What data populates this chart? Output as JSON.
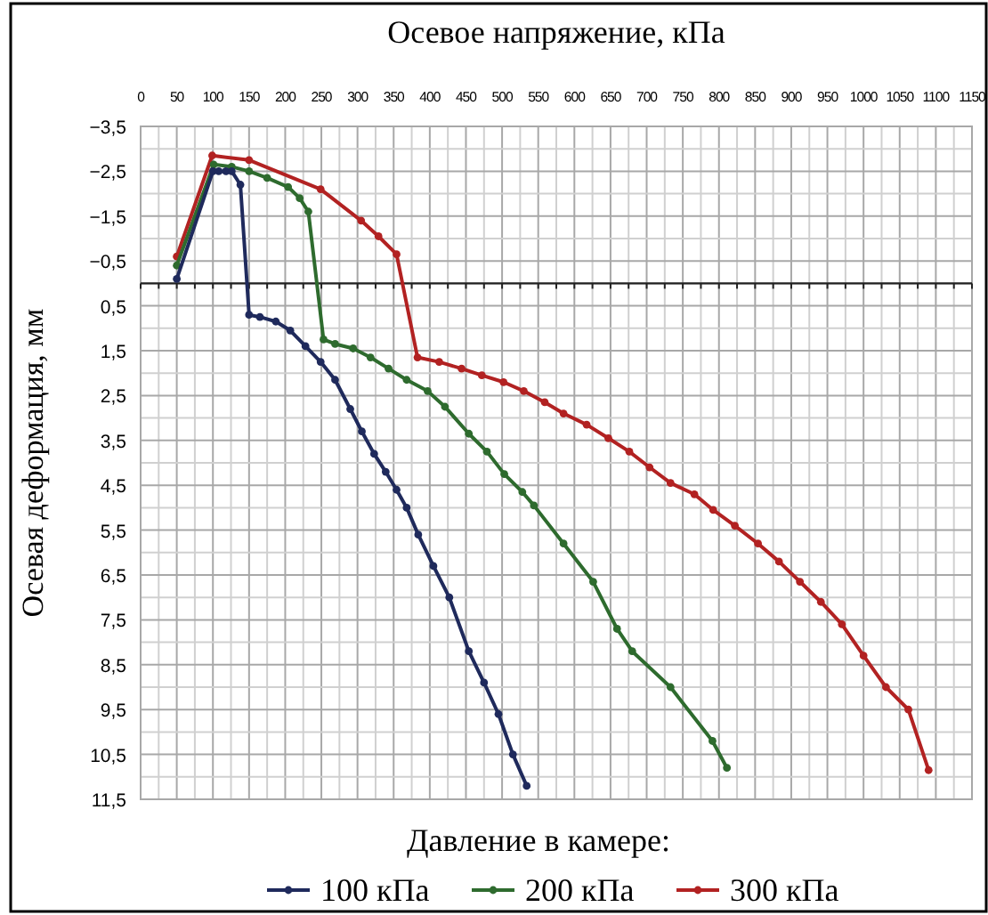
{
  "chart_data": {
    "type": "line",
    "xlabel": "Осевое напряжение, кПа",
    "ylabel": "Осевая деформация, мм",
    "legend_title": "Давление в камере:",
    "legend": "bottom",
    "grid": true,
    "marker": "circle",
    "line_style": "solid",
    "xlim": [
      0,
      1150
    ],
    "ylim": [
      11.5,
      -3.5
    ],
    "xticks": [
      0,
      {
        "value": 25,
        "label": null
      },
      50,
      {
        "value": 75,
        "label": null
      },
      100,
      {
        "value": 125,
        "label": null
      },
      150,
      {
        "value": 175,
        "label": null
      },
      200,
      {
        "value": 225,
        "label": null
      },
      250,
      {
        "value": 275,
        "label": null
      },
      300,
      {
        "value": 325,
        "label": null
      },
      350,
      {
        "value": 375,
        "label": null
      },
      400,
      {
        "value": 425,
        "label": null
      },
      450,
      {
        "value": 475,
        "label": null
      },
      500,
      {
        "value": 525,
        "label": null
      },
      550,
      {
        "value": 575,
        "label": null
      },
      600,
      {
        "value": 625,
        "label": null
      },
      650,
      {
        "value": 675,
        "label": null
      },
      700,
      {
        "value": 725,
        "label": null
      },
      750,
      {
        "value": 775,
        "label": null
      },
      800,
      {
        "value": 825,
        "label": null
      },
      850,
      {
        "value": 875,
        "label": null
      },
      900,
      {
        "value": 925,
        "label": null
      },
      950,
      {
        "value": 975,
        "label": null
      },
      1000,
      {
        "value": 1025,
        "label": null
      },
      1050,
      {
        "value": 1075,
        "label": null
      },
      1100,
      {
        "value": 1125,
        "label": null
      },
      1150
    ],
    "yticks": [
      {
        "value": -3.5,
        "label": "−3,5"
      },
      {
        "value": -3,
        "label": null
      },
      {
        "value": -2.5,
        "label": "−2,5"
      },
      {
        "value": -2,
        "label": null
      },
      {
        "value": -1.5,
        "label": "−1,5"
      },
      {
        "value": -1,
        "label": null
      },
      {
        "value": -0.5,
        "label": "−0,5"
      },
      {
        "value": 0,
        "label": null
      },
      {
        "value": 0.5,
        "label": "0,5"
      },
      {
        "value": 1,
        "label": null
      },
      {
        "value": 1.5,
        "label": "1,5"
      },
      {
        "value": 2,
        "label": null
      },
      {
        "value": 2.5,
        "label": "2,5"
      },
      {
        "value": 3,
        "label": null
      },
      {
        "value": 3.5,
        "label": "3,5"
      },
      {
        "value": 4,
        "label": null
      },
      {
        "value": 4.5,
        "label": "4,5"
      },
      {
        "value": 5,
        "label": null
      },
      {
        "value": 5.5,
        "label": "5,5"
      },
      {
        "value": 6,
        "label": null
      },
      {
        "value": 6.5,
        "label": "6,5"
      },
      {
        "value": 7,
        "label": null
      },
      {
        "value": 7.5,
        "label": "7,5"
      },
      {
        "value": 8,
        "label": null
      },
      {
        "value": 8.5,
        "label": "8,5"
      },
      {
        "value": 9,
        "label": null
      },
      {
        "value": 9.5,
        "label": "9,5"
      },
      {
        "value": 10,
        "label": null
      },
      {
        "value": 10.5,
        "label": "10,5"
      },
      {
        "value": 11,
        "label": null
      },
      {
        "value": 11.5,
        "label": "11,5"
      }
    ],
    "series": [
      {
        "name": "100 кПа",
        "color": "#1f2a5c",
        "x": [
          50,
          100,
          108,
          118,
          126,
          138,
          150,
          165,
          187,
          207,
          228,
          249,
          269,
          290,
          306,
          323,
          339,
          354,
          368,
          384,
          405,
          427,
          454,
          475,
          495,
          515,
          534
        ],
        "values": [
          -0.1,
          -2.5,
          -2.5,
          -2.5,
          -2.5,
          -2.2,
          0.7,
          0.75,
          0.85,
          1.05,
          1.4,
          1.75,
          2.15,
          2.8,
          3.3,
          3.8,
          4.2,
          4.6,
          5.0,
          5.6,
          6.3,
          7.0,
          8.2,
          8.9,
          9.6,
          10.5,
          11.2
        ]
      },
      {
        "name": "200 кПа",
        "color": "#2e6b2e",
        "x": [
          50,
          101,
          126,
          150,
          175,
          204,
          220,
          232,
          253,
          269,
          294,
          318,
          343,
          368,
          397,
          421,
          454,
          479,
          503,
          528,
          544,
          585,
          626,
          659,
          680,
          733,
          791,
          811
        ],
        "values": [
          -0.4,
          -2.65,
          -2.6,
          -2.5,
          -2.35,
          -2.15,
          -1.9,
          -1.6,
          1.25,
          1.35,
          1.45,
          1.65,
          1.9,
          2.15,
          2.4,
          2.75,
          3.35,
          3.75,
          4.25,
          4.65,
          4.95,
          5.8,
          6.65,
          7.7,
          8.2,
          9.0,
          10.2,
          10.8
        ]
      },
      {
        "name": "300 кПа",
        "color": "#b22222",
        "x": [
          50,
          99,
          150,
          249,
          305,
          329,
          354,
          383,
          413,
          444,
          472,
          502,
          530,
          559,
          585,
          617,
          647,
          676,
          704,
          733,
          766,
          792,
          822,
          854,
          883,
          912,
          941,
          970,
          1000,
          1031,
          1062,
          1090
        ],
        "values": [
          -0.6,
          -2.85,
          -2.75,
          -2.1,
          -1.4,
          -1.05,
          -0.65,
          1.65,
          1.75,
          1.9,
          2.05,
          2.2,
          2.4,
          2.65,
          2.9,
          3.15,
          3.45,
          3.75,
          4.1,
          4.45,
          4.7,
          5.05,
          5.4,
          5.8,
          6.2,
          6.65,
          7.1,
          7.6,
          8.3,
          9.0,
          9.5,
          10.85
        ]
      }
    ]
  }
}
